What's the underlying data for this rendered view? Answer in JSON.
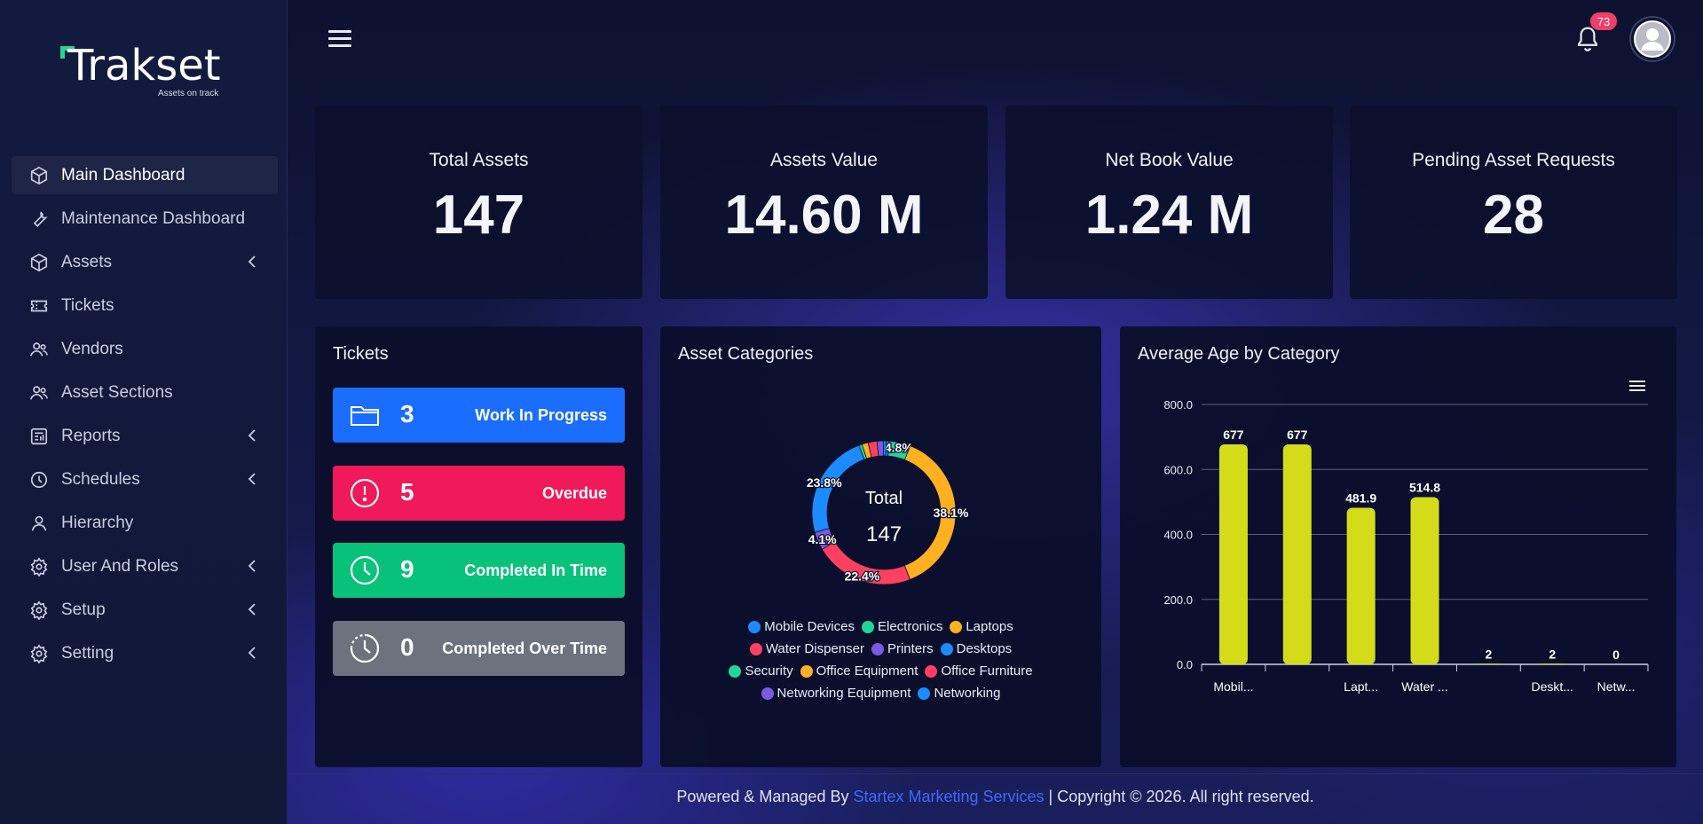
{
  "brand": {
    "name": "Trakset",
    "tagline": "Assets on track"
  },
  "sidebar": {
    "items": [
      {
        "label": "Main Dashboard",
        "icon": "cube-icon",
        "active": true,
        "chevron": false
      },
      {
        "label": "Maintenance Dashboard",
        "icon": "wrench-icon",
        "active": false,
        "chevron": false
      },
      {
        "label": "Assets",
        "icon": "cube-icon",
        "active": false,
        "chevron": true
      },
      {
        "label": "Tickets",
        "icon": "ticket-icon",
        "active": false,
        "chevron": false
      },
      {
        "label": "Vendors",
        "icon": "users-icon",
        "active": false,
        "chevron": false
      },
      {
        "label": "Asset Sections",
        "icon": "users-icon",
        "active": false,
        "chevron": false
      },
      {
        "label": "Reports",
        "icon": "report-icon",
        "active": false,
        "chevron": true
      },
      {
        "label": "Schedules",
        "icon": "clock-icon",
        "active": false,
        "chevron": true
      },
      {
        "label": "Hierarchy",
        "icon": "user-icon",
        "active": false,
        "chevron": false
      },
      {
        "label": "User And Roles",
        "icon": "gear-icon",
        "active": false,
        "chevron": true
      },
      {
        "label": "Setup",
        "icon": "gear-icon",
        "active": false,
        "chevron": true
      },
      {
        "label": "Setting",
        "icon": "gear-icon",
        "active": false,
        "chevron": true
      }
    ]
  },
  "topbar": {
    "notification_count": "73"
  },
  "stats": [
    {
      "title": "Total Assets",
      "value": "147"
    },
    {
      "title": "Assets Value",
      "value": "14.60 M"
    },
    {
      "title": "Net Book Value",
      "value": "1.24 M"
    },
    {
      "title": "Pending Asset Requests",
      "value": "28"
    }
  ],
  "tickets": {
    "title": "Tickets",
    "items": [
      {
        "count": "3",
        "label": "Work In Progress",
        "color": "#1a6dff",
        "icon": "folder-icon"
      },
      {
        "count": "5",
        "label": "Overdue",
        "color": "#f0195a",
        "icon": "alert-icon"
      },
      {
        "count": "9",
        "label": "Completed In Time",
        "color": "#08c27a",
        "icon": "clock-icon"
      },
      {
        "count": "0",
        "label": "Completed Over Time",
        "color": "#6c737c",
        "icon": "clock-dashed-icon"
      }
    ]
  },
  "asset_categories": {
    "title": "Asset Categories",
    "center_label": "Total",
    "center_value": "147",
    "chart_data": {
      "type": "pie",
      "slices": [
        {
          "name": "Mobile Devices",
          "value": 0.7,
          "color": "#1a8cff",
          "label": ""
        },
        {
          "name": "Electronics",
          "value": 4.8,
          "color": "#1fd69a",
          "label": "4.8%"
        },
        {
          "name": "Laptops",
          "value": 38.1,
          "color": "#ffb020",
          "label": "38.1%"
        },
        {
          "name": "Water Dispenser",
          "value": 22.4,
          "color": "#ff4060",
          "label": "22.4%"
        },
        {
          "name": "Printers",
          "value": 4.1,
          "color": "#7a5ae0",
          "label": "4.1%"
        },
        {
          "name": "Desktops",
          "value": 23.8,
          "color": "#1a8cff",
          "label": "23.8%"
        },
        {
          "name": "Security",
          "value": 0.7,
          "color": "#1fd69a",
          "label": ""
        },
        {
          "name": "Office Equipment",
          "value": 1.4,
          "color": "#ffb020",
          "label": ""
        },
        {
          "name": "Office Furniture",
          "value": 2.0,
          "color": "#ff4060",
          "label": ""
        },
        {
          "name": "Networking Equipment",
          "value": 1.4,
          "color": "#7a5ae0",
          "label": ""
        },
        {
          "name": "Networking",
          "value": 0.6,
          "color": "#1a8cff",
          "label": ""
        }
      ]
    }
  },
  "avg_age": {
    "title": "Average Age by Category",
    "chart_data": {
      "type": "bar",
      "categories": [
        "Mobil...",
        "",
        "Lapt...",
        "Water ...",
        "",
        "Deskt...",
        "Netw..."
      ],
      "values": [
        677,
        677,
        481.9,
        514.8,
        2,
        2,
        0
      ],
      "value_labels": [
        "677",
        "677",
        "481.9",
        "514.8",
        "2",
        "2",
        "0"
      ],
      "y_ticks": [
        "0.0",
        "200.0",
        "400.0",
        "600.0",
        "800.0"
      ],
      "ylim": [
        0,
        800
      ],
      "bar_color": "#d4dc1a"
    }
  },
  "footer": {
    "prefix": "Powered & Managed By ",
    "link": "Startex Marketing Services",
    "suffix": " | Copyright © 2026. All right reserved."
  }
}
